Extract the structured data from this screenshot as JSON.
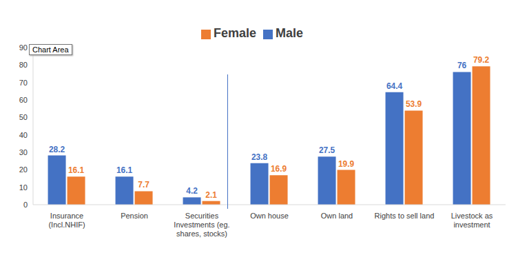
{
  "chart_data": {
    "type": "bar",
    "annotations": [
      "Chart Area"
    ],
    "categories": [
      "Insurance (Incl.NHIF)",
      "Pension",
      "Securities Investments (eg. shares, stocks)",
      "Own house",
      "Own land",
      "Rights to sell land",
      "Livestock as investment"
    ],
    "series": [
      {
        "name": "Male",
        "color": "#4472c4",
        "values": [
          28.2,
          16.1,
          4.2,
          23.8,
          27.5,
          64.4,
          76
        ]
      },
      {
        "name": "Female",
        "color": "#ed7d31",
        "values": [
          16.1,
          7.7,
          2.1,
          16.9,
          19.9,
          53.9,
          79.2
        ]
      }
    ],
    "ylim": [
      0,
      90
    ],
    "yticks": [
      0,
      10,
      20,
      30,
      40,
      50,
      60,
      70,
      80,
      90
    ],
    "grid": false,
    "legend": "top",
    "data_labels": true
  }
}
